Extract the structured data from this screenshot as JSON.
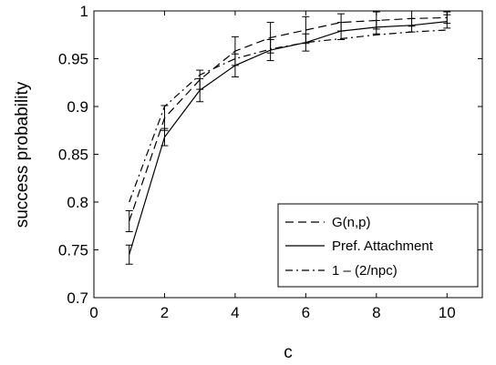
{
  "chart_data": {
    "type": "line",
    "xlabel": "c",
    "ylabel": "success probability",
    "xlim": [
      0,
      11
    ],
    "ylim": [
      0.7,
      1
    ],
    "xticks": [
      0,
      2,
      4,
      6,
      8,
      10
    ],
    "yticks": [
      0.7,
      0.75,
      0.8,
      0.85,
      0.9,
      0.95,
      1
    ],
    "xtick_labels": [
      "0",
      "2",
      "4",
      "6",
      "8",
      "10"
    ],
    "ytick_labels": [
      "0.7",
      "0.75",
      "0.8",
      "0.85",
      "0.9",
      "0.95",
      "1"
    ],
    "grid": false,
    "legend_position": "lower-right",
    "x": [
      1,
      2,
      3,
      4,
      5,
      6,
      7,
      8,
      9,
      10
    ],
    "series": [
      {
        "name": "G(n,p)",
        "style": "dashed",
        "values": [
          0.78,
          0.888,
          0.928,
          0.958,
          0.972,
          0.98,
          0.988,
          0.99,
          0.992,
          0.993
        ],
        "err": [
          0.011,
          0.013,
          0.01,
          0.015,
          0.016,
          0.014,
          0.009,
          0.009,
          0.008,
          0.006
        ]
      },
      {
        "name": "Pref. Attachment",
        "style": "solid",
        "values": [
          0.745,
          0.868,
          0.917,
          0.943,
          0.959,
          0.967,
          0.979,
          0.983,
          0.985,
          0.989
        ],
        "err": [
          0.01,
          0.009,
          0.012,
          0.012,
          0.011,
          0.009,
          0.009,
          0.007,
          0.007,
          0.007
        ]
      },
      {
        "name": "1 – (2/npc)",
        "style": "dashdot",
        "values": [
          0.8,
          0.9,
          0.933,
          0.95,
          0.96,
          0.967,
          0.971,
          0.975,
          0.978,
          0.98
        ]
      }
    ]
  }
}
